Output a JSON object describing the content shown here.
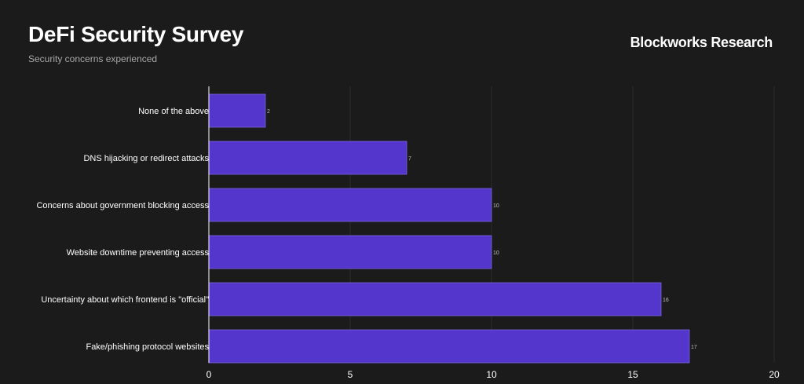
{
  "header": {
    "title": "DeFi Security Survey",
    "subtitle": "Security concerns experienced",
    "brand": "Blockworks Research"
  },
  "colors": {
    "background": "#1b1b1b",
    "bar": "#5436cc",
    "bar_border": "#7a64e0",
    "axis": "#ffffff",
    "grid": "#2b2b2b"
  },
  "chart_data": {
    "type": "bar",
    "orientation": "horizontal",
    "categories": [
      "None of the above",
      "DNS hijacking or redirect attacks",
      "Concerns about government blocking access",
      "Website downtime preventing access",
      "Uncertainty about which frontend is \"official\"",
      "Fake/phishing protocol websites"
    ],
    "values": [
      2,
      7,
      10,
      10,
      16,
      17
    ],
    "value_labels": [
      "2",
      "7",
      "10",
      "10",
      "16",
      "17"
    ],
    "xticks": [
      0,
      5,
      10,
      15,
      20
    ],
    "xtick_labels": [
      "0",
      "5",
      "10",
      "15",
      "20"
    ],
    "xlim": [
      0,
      20
    ],
    "title": "DeFi Security Survey",
    "subtitle": "Security concerns experienced",
    "xlabel": "",
    "ylabel": "",
    "grid": true,
    "legend": "none"
  }
}
